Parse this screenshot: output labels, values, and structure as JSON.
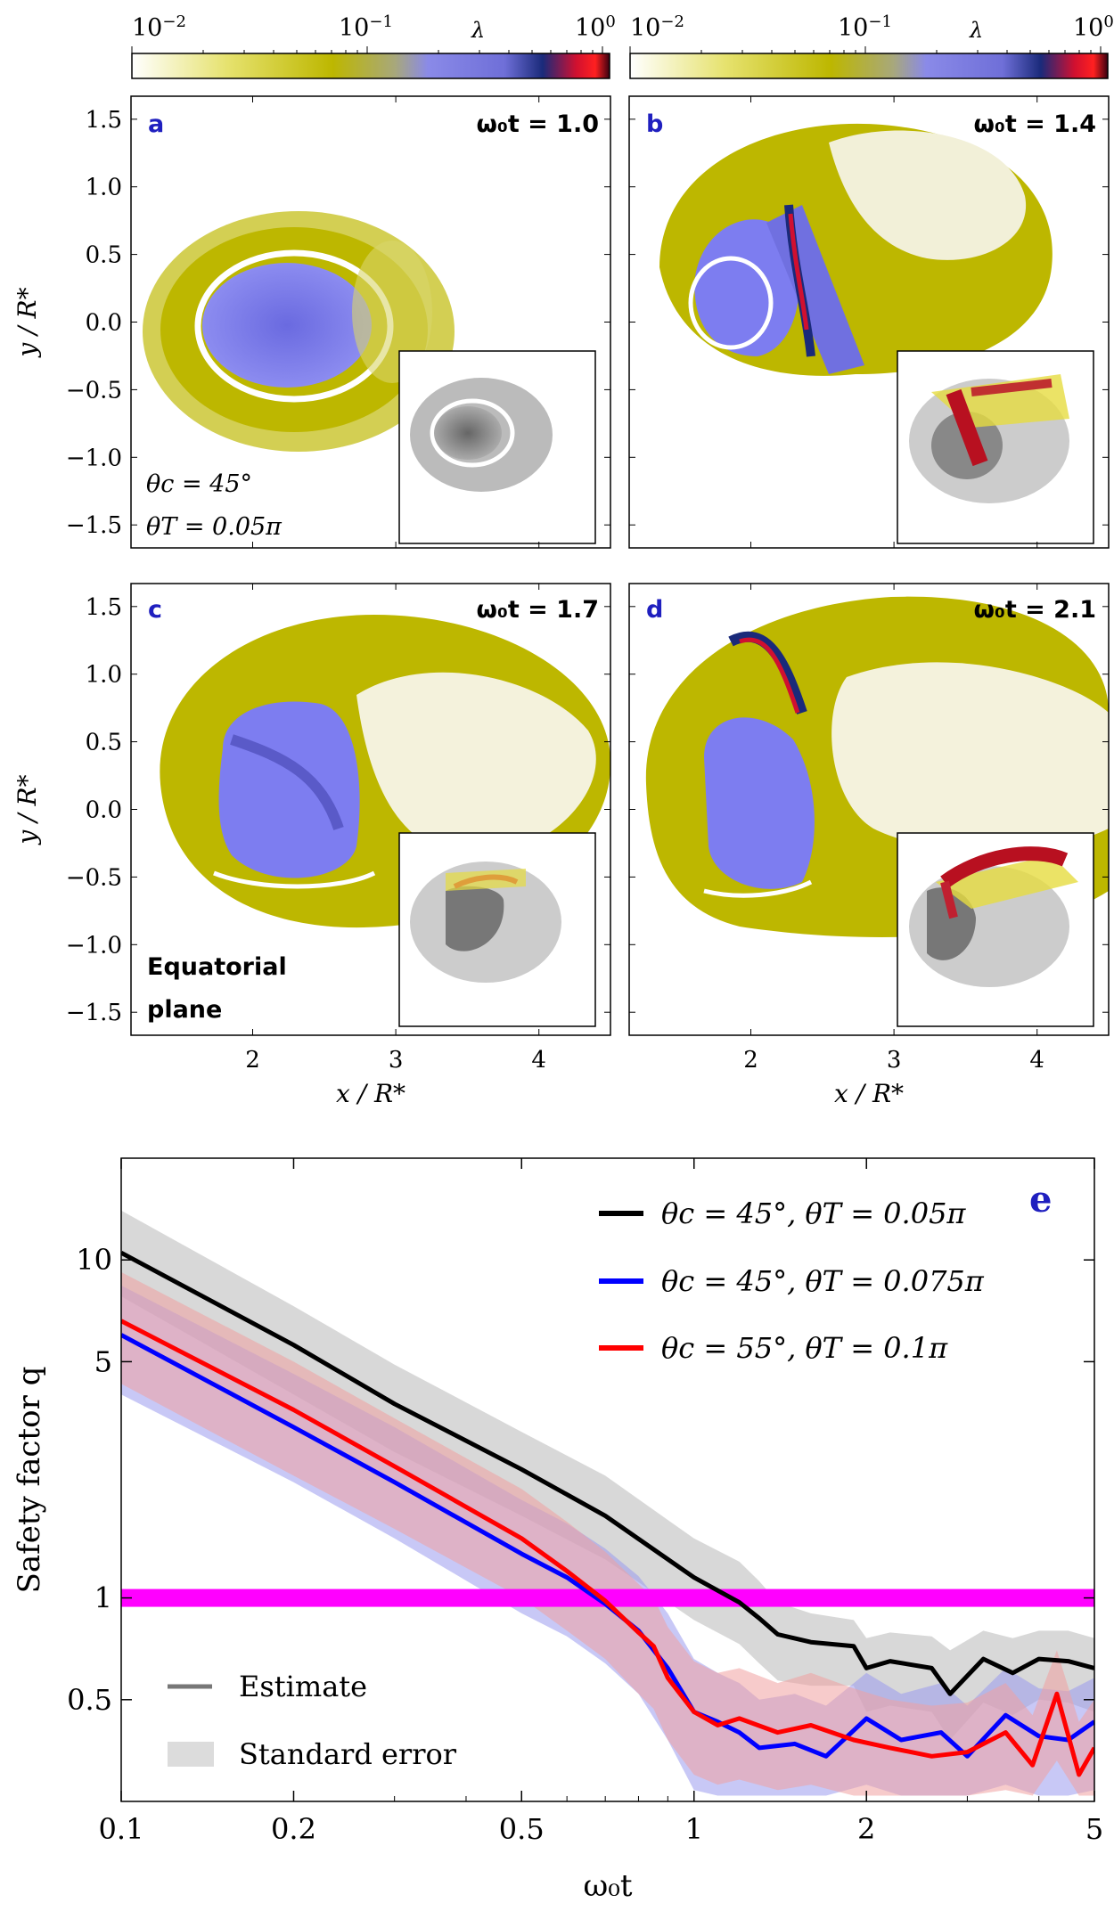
{
  "colors": {
    "yellow": "#bdb700",
    "periwinkle": "#7d7df0",
    "darkblue": "#1a2a7a",
    "crimson": "#d01030",
    "black_series": "#000000",
    "blue_series": "#0000ff",
    "red_series": "#ff0000",
    "magenta_band": "#ff00ff",
    "panel_label": "#1f1fbf"
  },
  "colorbar": {
    "label": "λ",
    "ticks": [
      {
        "base": "10",
        "exp": "−2"
      },
      {
        "base": "10",
        "exp": "−1"
      },
      {
        "base": "10",
        "exp": "0"
      }
    ]
  },
  "panels": [
    {
      "letter": "a",
      "time_label": "ω₀t = 1.0",
      "annotation": [
        "θc = 45°",
        "θT = 0.05π"
      ]
    },
    {
      "letter": "b",
      "time_label": "ω₀t = 1.4",
      "annotation": []
    },
    {
      "letter": "c",
      "time_label": "ω₀t = 1.7",
      "annotation": [
        "Equatorial",
        "plane"
      ]
    },
    {
      "letter": "d",
      "time_label": "ω₀t = 2.1",
      "annotation": []
    }
  ],
  "map_axes": {
    "xlabel": "x / R*",
    "ylabel": "y / R*",
    "xticks": [
      "2",
      "3",
      "4"
    ],
    "yticks": [
      "1.5",
      "1.0",
      "0.5",
      "0.0",
      "−0.5",
      "−1.0",
      "−1.5"
    ]
  },
  "chart_data": {
    "type": "line",
    "panel_letter": "e",
    "xlabel": "ω₀t",
    "ylabel": "Safety factor q",
    "x_scale": "log",
    "y_scale": "log",
    "xlim": [
      0.1,
      5
    ],
    "ylim": [
      0.25,
      20
    ],
    "xticks": [
      0.1,
      0.2,
      0.5,
      1,
      2,
      5
    ],
    "xtick_labels": [
      "0.1",
      "0.2",
      "0.5",
      "1",
      "2",
      "5"
    ],
    "yticks": [
      0.5,
      1,
      5,
      10
    ],
    "ytick_labels": [
      "0.5",
      "1",
      "5",
      "10"
    ],
    "threshold": {
      "value": 1,
      "color": "#ff00ff"
    },
    "series": [
      {
        "name": "θc = 45°, θT = 0.05π",
        "color": "#000000",
        "x": [
          0.1,
          0.2,
          0.3,
          0.5,
          0.7,
          1.0,
          1.2,
          1.3,
          1.4,
          1.6,
          1.9,
          2.0,
          2.2,
          2.6,
          2.8,
          3.2,
          3.6,
          4.0,
          4.5,
          5.0
        ],
        "y": [
          10.5,
          5.6,
          3.75,
          2.4,
          1.75,
          1.15,
          0.97,
          0.87,
          0.78,
          0.74,
          0.72,
          0.62,
          0.65,
          0.62,
          0.52,
          0.66,
          0.6,
          0.66,
          0.65,
          0.62
        ],
        "err_upper": [
          14,
          7.3,
          4.9,
          3.1,
          2.3,
          1.5,
          1.28,
          1.12,
          0.97,
          0.9,
          0.86,
          0.76,
          0.79,
          0.77,
          0.7,
          0.8,
          0.76,
          0.8,
          0.8,
          0.76
        ],
        "err_lower": [
          7.8,
          4.0,
          2.7,
          1.75,
          1.3,
          0.86,
          0.73,
          0.64,
          0.57,
          0.55,
          0.55,
          0.46,
          0.48,
          0.46,
          0.38,
          0.49,
          0.45,
          0.5,
          0.49,
          0.46
        ]
      },
      {
        "name": "θc = 45°, θT = 0.075π",
        "color": "#0000ff",
        "x": [
          0.1,
          0.2,
          0.3,
          0.5,
          0.6,
          0.7,
          0.8,
          0.9,
          1.0,
          1.1,
          1.2,
          1.3,
          1.5,
          1.7,
          2.0,
          2.3,
          2.7,
          3.0,
          3.5,
          4.0,
          4.5,
          5.0
        ],
        "y": [
          6.0,
          3.2,
          2.2,
          1.35,
          1.15,
          0.96,
          0.8,
          0.62,
          0.46,
          0.43,
          0.4,
          0.36,
          0.37,
          0.34,
          0.44,
          0.38,
          0.4,
          0.34,
          0.45,
          0.39,
          0.38,
          0.43
        ],
        "err_upper": [
          8.4,
          4.6,
          3.2,
          1.95,
          1.66,
          1.4,
          1.16,
          0.9,
          0.66,
          0.6,
          0.56,
          0.5,
          0.52,
          0.48,
          0.6,
          0.52,
          0.56,
          0.48,
          0.62,
          0.54,
          0.53,
          0.58
        ],
        "err_lower": [
          4.0,
          2.2,
          1.5,
          0.9,
          0.77,
          0.64,
          0.52,
          0.38,
          0.27,
          0.26,
          0.26,
          0.26,
          0.26,
          0.26,
          0.28,
          0.26,
          0.26,
          0.26,
          0.28,
          0.26,
          0.26,
          0.27
        ]
      },
      {
        "name": "θc = 55°, θT = 0.1π",
        "color": "#ff0000",
        "x": [
          0.1,
          0.2,
          0.3,
          0.5,
          0.6,
          0.7,
          0.8,
          0.85,
          0.9,
          1.0,
          1.1,
          1.2,
          1.4,
          1.6,
          1.9,
          2.2,
          2.6,
          3.0,
          3.5,
          3.9,
          4.3,
          4.7,
          5.0
        ],
        "y": [
          6.6,
          3.6,
          2.45,
          1.5,
          1.2,
          0.98,
          0.79,
          0.72,
          0.58,
          0.46,
          0.42,
          0.44,
          0.4,
          0.42,
          0.38,
          0.36,
          0.34,
          0.35,
          0.4,
          0.32,
          0.52,
          0.3,
          0.36
        ],
        "err_upper": [
          9.2,
          5.0,
          3.4,
          2.1,
          1.68,
          1.37,
          1.1,
          1.0,
          0.82,
          0.65,
          0.6,
          0.62,
          0.56,
          0.6,
          0.54,
          0.5,
          0.48,
          0.49,
          0.56,
          0.45,
          0.7,
          0.43,
          0.5
        ],
        "err_lower": [
          4.3,
          2.3,
          1.6,
          1.0,
          0.8,
          0.66,
          0.52,
          0.47,
          0.38,
          0.3,
          0.28,
          0.29,
          0.27,
          0.28,
          0.26,
          0.26,
          0.26,
          0.26,
          0.27,
          0.26,
          0.33,
          0.26,
          0.26
        ]
      }
    ],
    "legend_bottom": {
      "estimate": "Estimate",
      "error": "Standard error"
    }
  }
}
